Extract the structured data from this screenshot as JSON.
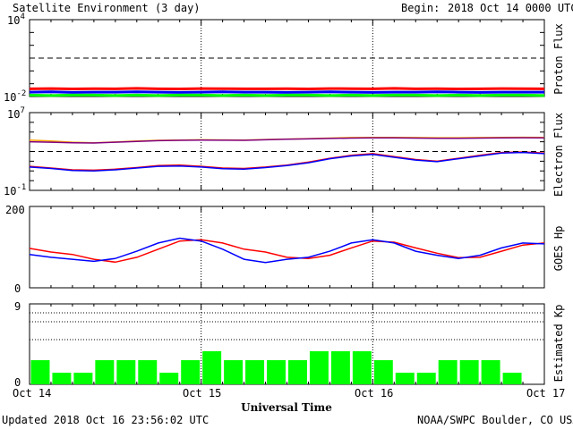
{
  "header": {
    "title": "Satellite Environment (3 day)",
    "begin_label": "Begin:",
    "begin_value": "2018 Oct 14 0000 UTC"
  },
  "footer": {
    "updated": "Updated 2018 Oct 16 23:56:02 UTC",
    "credit": "NOAA/SWPC Boulder, CO USA",
    "xlabel": "Universal Time"
  },
  "colors": {
    "red": "#ff0000",
    "blue": "#0000ff",
    "green": "#00ff00",
    "orange": "#ffa500",
    "purple": "#800080"
  },
  "chart_data": [
    {
      "type": "line",
      "ylabel": "Proton Flux",
      "scale": "log",
      "ylim_exp": [
        -2,
        4
      ],
      "ytick_labels": {
        "top_base": "10",
        "top_exp": "4",
        "bottom_base": "10",
        "bottom_exp": "-2"
      },
      "threshold": 10,
      "series": [
        {
          "color": "red",
          "values": [
            0.04,
            0.042,
            0.039,
            0.041,
            0.04,
            0.043,
            0.04,
            0.039,
            0.042,
            0.041,
            0.04,
            0.04,
            0.041,
            0.039,
            0.042,
            0.041,
            0.04,
            0.043,
            0.04,
            0.041,
            0.039,
            0.04,
            0.042,
            0.041,
            0.04
          ]
        },
        {
          "color": "blue",
          "values": [
            0.022,
            0.023,
            0.021,
            0.022,
            0.022,
            0.023,
            0.022,
            0.021,
            0.022,
            0.023,
            0.022,
            0.022,
            0.021,
            0.022,
            0.023,
            0.022,
            0.021,
            0.022,
            0.022,
            0.023,
            0.022,
            0.021,
            0.022,
            0.022,
            0.022
          ]
        },
        {
          "color": "green",
          "values": [
            0.013,
            0.012,
            0.013,
            0.013,
            0.012,
            0.013,
            0.012,
            0.013,
            0.013,
            0.012,
            0.013,
            0.012,
            0.013,
            0.013,
            0.012,
            0.013,
            0.012,
            0.013,
            0.013,
            0.012,
            0.013,
            0.012,
            0.013,
            0.013,
            0.012
          ]
        }
      ]
    },
    {
      "type": "line",
      "ylabel": "Electron Flux",
      "scale": "log",
      "ylim_exp": [
        -1,
        7
      ],
      "ytick_labels": {
        "top_base": "10",
        "top_exp": "7",
        "bottom_base": "10",
        "bottom_exp": "-1"
      },
      "threshold": 1000,
      "series": [
        {
          "color": "orange",
          "values": [
            15000,
            12000,
            9000,
            8000,
            9500,
            12000,
            14000,
            15000,
            16000,
            15500,
            15000,
            17000,
            19000,
            21000,
            24000,
            27000,
            28000,
            28000,
            27000,
            26000,
            26000,
            27000,
            28000,
            29000,
            28000
          ]
        },
        {
          "color": "purple",
          "values": [
            10000,
            9000,
            8000,
            7500,
            9000,
            11000,
            13000,
            14000,
            15000,
            14500,
            14000,
            16000,
            18000,
            20000,
            22000,
            24000,
            25000,
            25000,
            24000,
            23000,
            23000,
            24000,
            25000,
            26000,
            25000
          ]
        },
        {
          "color": "red",
          "values": [
            30,
            20,
            13,
            12,
            15,
            22,
            35,
            40,
            30,
            20,
            18,
            25,
            40,
            80,
            200,
            400,
            600,
            300,
            150,
            100,
            200,
            400,
            800,
            900,
            700
          ]
        },
        {
          "color": "blue",
          "values": [
            25,
            18,
            11,
            10,
            13,
            20,
            30,
            32,
            25,
            17,
            15,
            22,
            35,
            70,
            180,
            350,
            500,
            250,
            130,
            90,
            180,
            350,
            700,
            800,
            600
          ]
        }
      ]
    },
    {
      "type": "line",
      "ylabel": "GOES Hp",
      "scale": "linear",
      "ylim": [
        0,
        200
      ],
      "ytick_labels": {
        "top": "200",
        "bottom": "0"
      },
      "series": [
        {
          "color": "red",
          "values": [
            97,
            88,
            82,
            70,
            63,
            75,
            95,
            115,
            118,
            110,
            95,
            88,
            75,
            72,
            80,
            98,
            115,
            112,
            98,
            85,
            74,
            75,
            90,
            105,
            110
          ]
        },
        {
          "color": "blue",
          "values": [
            82,
            75,
            70,
            65,
            72,
            90,
            110,
            122,
            115,
            95,
            70,
            62,
            70,
            75,
            90,
            110,
            118,
            110,
            90,
            80,
            72,
            80,
            98,
            110,
            108
          ]
        }
      ]
    },
    {
      "type": "bar",
      "ylabel": "Estimated Kp",
      "ylim": [
        0,
        9
      ],
      "ytick_labels": {
        "top": "9",
        "bottom": "0"
      },
      "values": [
        2.7,
        1.3,
        1.3,
        2.7,
        2.7,
        2.7,
        1.3,
        2.7,
        3.7,
        2.7,
        2.7,
        2.7,
        2.7,
        3.7,
        3.7,
        3.7,
        2.7,
        1.3,
        1.3,
        2.7,
        2.7,
        2.7,
        1.3,
        0
      ]
    }
  ],
  "xaxis": {
    "labels": [
      "Oct 14",
      "Oct 15",
      "Oct 16",
      "Oct 17"
    ]
  }
}
